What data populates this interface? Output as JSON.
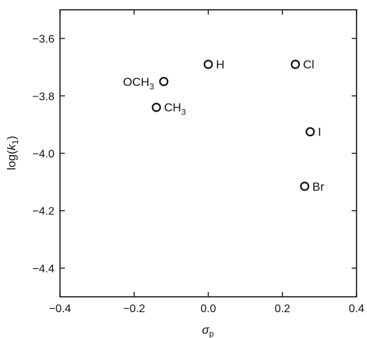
{
  "chart_data": {
    "type": "scatter",
    "title": "",
    "xlabel": "σp",
    "ylabel": "log(k1)",
    "xlim": [
      -0.4,
      0.4
    ],
    "ylim": [
      -4.5,
      -3.5
    ],
    "grid": false,
    "x_ticks": [
      {
        "value": -0.4,
        "label": "−0.4"
      },
      {
        "value": -0.2,
        "label": "−0.2"
      },
      {
        "value": 0.0,
        "label": "0.0"
      },
      {
        "value": 0.2,
        "label": "0.2"
      },
      {
        "value": 0.4,
        "label": "0.4"
      }
    ],
    "y_ticks": [
      {
        "value": -3.6,
        "label": "−3.6"
      },
      {
        "value": -3.8,
        "label": "−3.8"
      },
      {
        "value": -4.0,
        "label": "−4.0"
      },
      {
        "value": -4.2,
        "label": "−4.2"
      },
      {
        "value": -4.4,
        "label": "−4.4"
      }
    ],
    "points": [
      {
        "label": "OCH3",
        "x": -0.12,
        "y": -3.75,
        "label_side": "left"
      },
      {
        "label": "CH3",
        "x": -0.14,
        "y": -3.84,
        "label_side": "right"
      },
      {
        "label": "H",
        "x": 0.0,
        "y": -3.69,
        "label_side": "right"
      },
      {
        "label": "Cl",
        "x": 0.235,
        "y": -3.69,
        "label_side": "right"
      },
      {
        "label": "I",
        "x": 0.275,
        "y": -3.925,
        "label_side": "right"
      },
      {
        "label": "Br",
        "x": 0.26,
        "y": -4.115,
        "label_side": "right"
      }
    ]
  }
}
